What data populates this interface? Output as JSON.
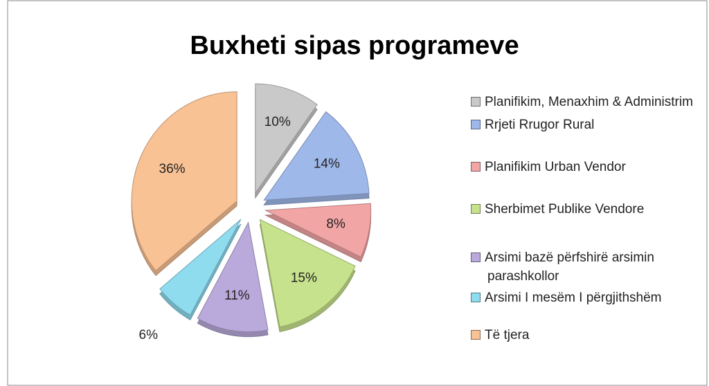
{
  "chart_data": {
    "type": "pie",
    "title": "Buxheti sipas programeve",
    "categories": [
      "Planifikim, Menaxhim & Administrim",
      "Rrjeti Rrugor Rural",
      "Planifikim Urban Vendor",
      "Sherbimet Publike Vendore",
      "Arsimi bazë përfshirë arsimin parashkollor",
      "Arsimi I mesëm I përgjithshëm",
      "Të tjera"
    ],
    "values": [
      10,
      14,
      8,
      15,
      11,
      6,
      36
    ],
    "value_labels": [
      "10%",
      "14%",
      "8%",
      "15%",
      "11%",
      "6%",
      "36%"
    ],
    "colors": [
      "#c9c9c9",
      "#9fb8ea",
      "#f2a5a5",
      "#c7e28c",
      "#b9aadb",
      "#8fdcef",
      "#f9c295"
    ],
    "legend": "right"
  }
}
